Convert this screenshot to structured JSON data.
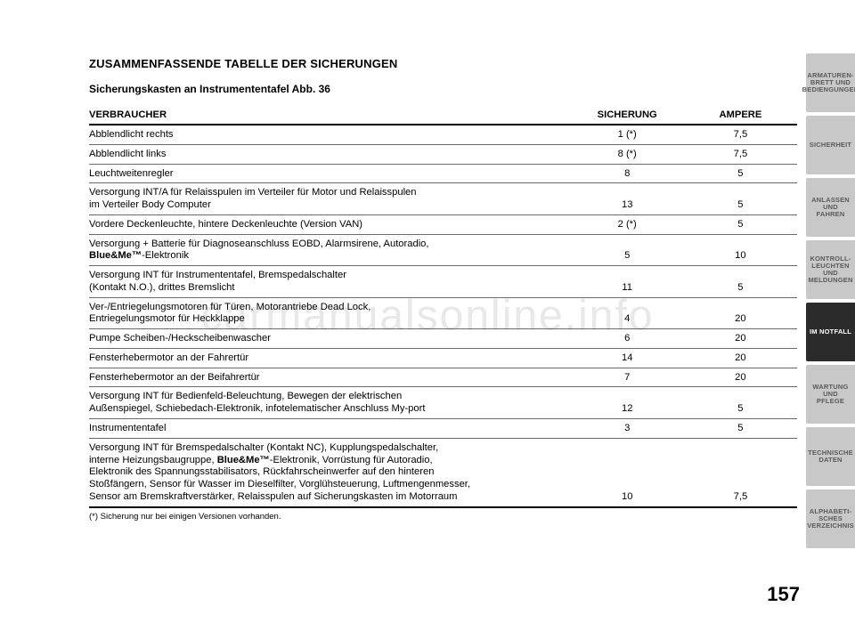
{
  "watermark": "carmanualsonline.info",
  "heading": "ZUSAMMENFASSENDE TABELLE DER SICHERUNGEN",
  "subheading": "Sicherungskasten an Instrumententafel Abb. 36",
  "columns": {
    "c1": "VERBRAUCHER",
    "c2": "SICHERUNG",
    "c3": "AMPERE"
  },
  "rows": [
    {
      "desc": "Abblendlicht rechts",
      "fuse": "1 (*)",
      "amp": "7,5"
    },
    {
      "desc": "Abblendlicht links",
      "fuse": "8 (*)",
      "amp": "7,5"
    },
    {
      "desc": "Leuchtweitenregler",
      "fuse": "8",
      "amp": "5"
    },
    {
      "desc": "Versorgung INT/A für Relaisspulen im Verteiler für Motor und Relaisspulen<br>im Verteiler Body Computer",
      "fuse": "13",
      "amp": "5"
    },
    {
      "desc": "Vordere Deckenleuchte, hintere Deckenleuchte (Version VAN)",
      "fuse": "2 (*)",
      "amp": "5"
    },
    {
      "desc": "Versorgung + Batterie für Diagnoseanschluss EOBD, Alarmsirene, Autoradio,<br><span class=\"bold\">Blue&amp;Me™</span>-Elektronik",
      "fuse": "5",
      "amp": "10"
    },
    {
      "desc": "Versorgung INT für Instrumententafel, Bremspedalschalter<br>(Kontakt N.O.), drittes Bremslicht",
      "fuse": "11",
      "amp": "5"
    },
    {
      "desc": "Ver-/Entriegelungsmotoren für Türen, Motorantriebe Dead Lock,<br>Entriegelungsmotor für Heckklappe",
      "fuse": "4",
      "amp": "20"
    },
    {
      "desc": "Pumpe Scheiben-/Heckscheibenwascher",
      "fuse": "6",
      "amp": "20"
    },
    {
      "desc": "Fensterhebermotor an der Fahrertür",
      "fuse": "14",
      "amp": "20"
    },
    {
      "desc": "Fensterhebermotor an der Beifahrertür",
      "fuse": "7",
      "amp": "20"
    },
    {
      "desc": "Versorgung INT für Bedienfeld-Beleuchtung, Bewegen der elektrischen<br>Außenspiegel, Schiebedach-Elektronik, infotelematischer Anschluss My-port",
      "fuse": "12",
      "amp": "5"
    },
    {
      "desc": "Instrumententafel",
      "fuse": "3",
      "amp": "5"
    },
    {
      "desc": "Versorgung INT für Bremspedalschalter (Kontakt NC), Kupplungspedalschalter,<br>interne Heizungsbaugruppe, <span class=\"bold\">Blue&amp;Me™</span>-Elektronik, Vorrüstung für Autoradio,<br>Elektronik des Spannungsstabilisators, Rückfahrscheinwerfer auf den hinteren<br>Stoßfängern, Sensor für Wasser im Dieselfilter, Vorglühsteuerung, Luftmengenmesser,<br>Sensor am Bremskraftverstärker, Relaisspulen auf Sicherungskasten im Motorraum",
      "fuse": "10",
      "amp": "7,5"
    }
  ],
  "footnote": "(*) Sicherung nur bei einigen Versionen vorhanden.",
  "pagenum": "157",
  "tabs": [
    {
      "label": "ARMATUREN-\nBRETT UND\nBEDIENGUNGEN",
      "active": false
    },
    {
      "label": "SICHERHEIT",
      "active": false
    },
    {
      "label": "ANLASSEN\nUND FAHREN",
      "active": false
    },
    {
      "label": "KONTROLL-\nLEUCHTEN UND\nMELDUNGEN",
      "active": false
    },
    {
      "label": "IM NOTFALL",
      "active": true
    },
    {
      "label": "WARTUNG\nUND PFLEGE",
      "active": false
    },
    {
      "label": "TECHNISCHE\nDATEN",
      "active": false
    },
    {
      "label": "ALPHABETI-\nSCHES\nVERZEICHNIS",
      "active": false
    }
  ],
  "colwidths": {
    "c1": "68%",
    "c2": "16%",
    "c3": "16%"
  },
  "style": {
    "heading_fontsize": 13,
    "subheading_fontsize": 12,
    "body_fontsize": 11.2,
    "footnote_fontsize": 9.5,
    "pagenum_fontsize": 22,
    "line_color": "#6a6a6a",
    "heavy_line_color": "#000000",
    "tab_gray_bg": "#c8c8c8",
    "tab_gray_fg": "#5a5a5a",
    "tab_active_bg": "#2b2b2b",
    "tab_active_fg": "#ffffff",
    "watermark_color": "#e8e8e8",
    "background": "#ffffff"
  }
}
